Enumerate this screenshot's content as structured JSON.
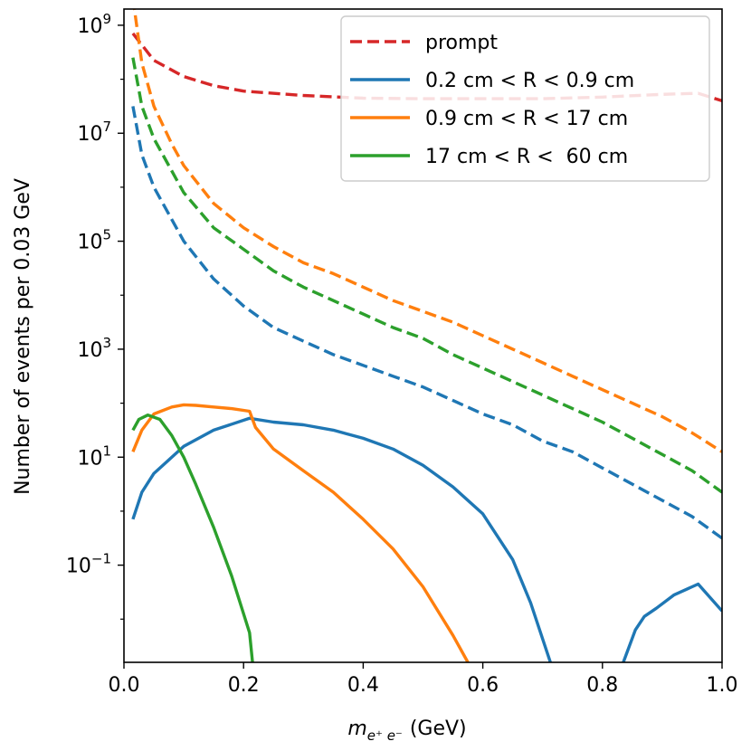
{
  "chart_data": {
    "type": "line",
    "title": "",
    "xlabel_base": "m",
    "xlabel_sub": "e⁺ e⁻",
    "xlabel_unit": "(GeV)",
    "ylabel": "Number of events per 0.03 GeV",
    "y_scale": "log",
    "xlim": [
      0.0,
      1.0
    ],
    "ylim_log10": [
      -2.8,
      9.3
    ],
    "x_ticks": [
      0.0,
      0.2,
      0.4,
      0.6,
      0.8,
      1.0
    ],
    "x_tick_labels": [
      "0.0",
      "0.2",
      "0.4",
      "0.6",
      "0.8",
      "1.0"
    ],
    "y_ticks_log10": [
      9,
      7,
      5,
      3,
      1,
      -1
    ],
    "y_tick_bases": [
      "10",
      "10",
      "10",
      "10",
      "10",
      "10"
    ],
    "y_tick_exponents": [
      "9",
      "7",
      "5",
      "3",
      "1",
      "−1"
    ],
    "legend_position": "top-right",
    "series": [
      {
        "name": "prompt",
        "color": "#d62728",
        "style": "dashed",
        "x": [
          0.015,
          0.05,
          0.1,
          0.15,
          0.2,
          0.3,
          0.4,
          0.5,
          0.6,
          0.7,
          0.8,
          0.9,
          0.96,
          1.0
        ],
        "y_log10": [
          8.85,
          8.35,
          8.05,
          7.88,
          7.78,
          7.7,
          7.65,
          7.64,
          7.64,
          7.64,
          7.67,
          7.72,
          7.74,
          7.6
        ]
      },
      {
        "name": "0.2 cm < R < 0.9 cm",
        "color": "#1f77b4",
        "style": "dashed",
        "x": [
          0.015,
          0.03,
          0.05,
          0.08,
          0.1,
          0.15,
          0.2,
          0.25,
          0.3,
          0.35,
          0.4,
          0.45,
          0.5,
          0.55,
          0.6,
          0.65,
          0.7,
          0.75,
          0.8,
          0.85,
          0.9,
          0.95,
          1.0
        ],
        "y_log10": [
          7.5,
          6.6,
          6.0,
          5.4,
          5.0,
          4.3,
          3.8,
          3.4,
          3.15,
          2.9,
          2.7,
          2.5,
          2.3,
          2.05,
          1.8,
          1.6,
          1.3,
          1.1,
          0.8,
          0.5,
          0.2,
          -0.1,
          -0.5
        ]
      },
      {
        "name": "0.9 cm < R < 17 cm",
        "color": "#ff7f0e",
        "style": "dashed",
        "x": [
          0.015,
          0.03,
          0.05,
          0.08,
          0.1,
          0.15,
          0.2,
          0.25,
          0.3,
          0.35,
          0.4,
          0.45,
          0.5,
          0.55,
          0.6,
          0.65,
          0.7,
          0.75,
          0.8,
          0.85,
          0.9,
          0.95,
          1.0
        ],
        "y_log10": [
          9.5,
          8.3,
          7.5,
          6.8,
          6.4,
          5.7,
          5.25,
          4.9,
          4.6,
          4.4,
          4.15,
          3.9,
          3.7,
          3.5,
          3.25,
          3.0,
          2.75,
          2.5,
          2.25,
          2.0,
          1.75,
          1.45,
          1.1
        ]
      },
      {
        "name": "17 cm < R <  60 cm",
        "color": "#2ca02c",
        "style": "dashed",
        "x": [
          0.015,
          0.03,
          0.05,
          0.08,
          0.1,
          0.15,
          0.2,
          0.25,
          0.3,
          0.35,
          0.4,
          0.45,
          0.5,
          0.55,
          0.6,
          0.65,
          0.7,
          0.75,
          0.8,
          0.85,
          0.9,
          0.95,
          1.0
        ],
        "y_log10": [
          8.4,
          7.5,
          6.9,
          6.3,
          5.9,
          5.25,
          4.85,
          4.45,
          4.15,
          3.9,
          3.65,
          3.4,
          3.2,
          2.9,
          2.65,
          2.4,
          2.15,
          1.9,
          1.65,
          1.35,
          1.05,
          0.75,
          0.35
        ]
      },
      {
        "name": "0.2 cm < R < 0.9 cm (solid)",
        "color": "#1f77b4",
        "style": "solid",
        "x": [
          0.015,
          0.03,
          0.05,
          0.08,
          0.1,
          0.15,
          0.21,
          0.25,
          0.3,
          0.35,
          0.4,
          0.45,
          0.5,
          0.55,
          0.6,
          0.65,
          0.68,
          0.713
        ],
        "y_log10": [
          -0.15,
          0.35,
          0.7,
          1.0,
          1.2,
          1.5,
          1.72,
          1.65,
          1.6,
          1.5,
          1.35,
          1.15,
          0.85,
          0.45,
          -0.05,
          -0.9,
          -1.7,
          -2.8
        ]
      },
      {
        "name": "0.2 cm < R < 0.9 cm (solid, tail)",
        "color": "#1f77b4",
        "style": "solid",
        "x": [
          0.835,
          0.855,
          0.87,
          0.89,
          0.92,
          0.96,
          1.0
        ],
        "y_log10": [
          -2.8,
          -2.2,
          -1.95,
          -1.8,
          -1.55,
          -1.35,
          -1.85
        ]
      },
      {
        "name": "0.9 cm < R < 17 cm (solid)",
        "color": "#ff7f0e",
        "style": "solid",
        "x": [
          0.015,
          0.03,
          0.05,
          0.08,
          0.1,
          0.12,
          0.15,
          0.18,
          0.21,
          0.22,
          0.25,
          0.3,
          0.35,
          0.4,
          0.45,
          0.5,
          0.55,
          0.575
        ],
        "y_log10": [
          1.1,
          1.5,
          1.8,
          1.93,
          1.97,
          1.96,
          1.93,
          1.9,
          1.85,
          1.55,
          1.15,
          0.75,
          0.35,
          -0.15,
          -0.7,
          -1.4,
          -2.3,
          -2.8
        ]
      },
      {
        "name": "17 cm < R <  60 cm (solid)",
        "color": "#2ca02c",
        "style": "solid",
        "x": [
          0.015,
          0.025,
          0.04,
          0.06,
          0.08,
          0.1,
          0.12,
          0.15,
          0.18,
          0.21,
          0.215
        ],
        "y_log10": [
          1.5,
          1.7,
          1.78,
          1.7,
          1.4,
          1.0,
          0.5,
          -0.3,
          -1.2,
          -2.25,
          -2.8
        ]
      }
    ],
    "legend": [
      {
        "label": "prompt",
        "color": "#d62728",
        "style": "dashed"
      },
      {
        "label": "0.2 cm < R < 0.9 cm",
        "color": "#1f77b4",
        "style": "solid"
      },
      {
        "label": "0.9 cm < R < 17 cm",
        "color": "#ff7f0e",
        "style": "solid"
      },
      {
        "label": "17 cm < R <  60 cm",
        "color": "#2ca02c",
        "style": "solid"
      }
    ]
  }
}
